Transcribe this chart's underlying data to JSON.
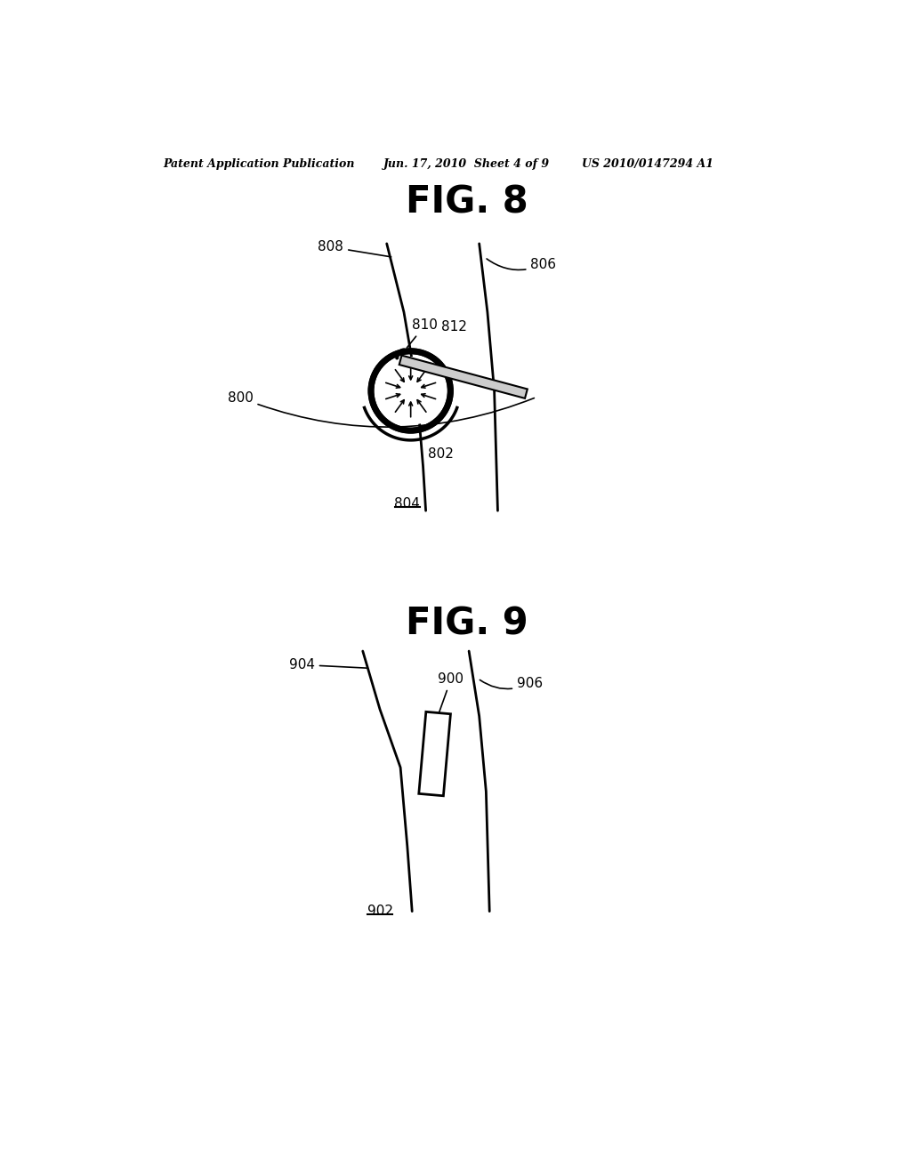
{
  "background_color": "#ffffff",
  "header_left": "Patent Application Publication",
  "header_center": "Jun. 17, 2010  Sheet 4 of 9",
  "header_right": "US 2010/0147294 A1",
  "fig8_title": "FIG. 8",
  "fig9_title": "FIG. 9",
  "line_color": "#000000"
}
